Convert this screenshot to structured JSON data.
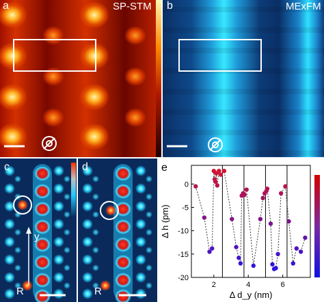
{
  "panels": {
    "a": {
      "label": "a",
      "title": "SP-STM"
    },
    "b": {
      "label": "b",
      "title": "MExFM"
    },
    "c": {
      "label": "c",
      "axis_label": "y",
      "origin_label": "R"
    },
    "d": {
      "label": "d",
      "origin_label": "R"
    },
    "e": {
      "label": "e"
    }
  },
  "colors": {
    "stm_dark": "#3a0000",
    "stm_mid": "#c42a00",
    "stm_bright": "#fff2a0",
    "mexfm_bg": "#0b3d7a",
    "mexfm_stripe": "#2ee6ff",
    "sim_bg": "#0a2a5c",
    "sim_spot": "#29d6ff",
    "sim_red": "#e02020",
    "line_series": "#333333",
    "colorbar_top": "#d40000",
    "colorbar_bottom": "#1010e0"
  },
  "chart_data": {
    "type": "scatter",
    "xlabel": "Δ d_y (nm)",
    "ylabel": "Δ h (pm)",
    "xlim": [
      0.7,
      7.6
    ],
    "ylim": [
      -20,
      4
    ],
    "xticks": [
      2,
      4,
      6
    ],
    "yticks": [
      0,
      -5,
      -10,
      -15,
      -20
    ],
    "vertical_lines_x": [
      2.5,
      3.75,
      5.0,
      6.25
    ],
    "grid": false,
    "points_x": [
      0.95,
      1.45,
      1.75,
      1.9,
      2.0,
      2.05,
      2.1,
      2.15,
      2.2,
      2.3,
      2.4,
      2.6,
      3.05,
      3.3,
      3.45,
      3.55,
      3.62,
      3.7,
      3.78,
      3.9,
      4.3,
      4.7,
      4.85,
      4.95,
      5.05,
      5.1,
      5.3,
      5.4,
      5.5,
      5.6,
      5.72,
      5.9,
      6.15,
      6.35,
      6.6,
      6.8,
      7.05,
      7.3
    ],
    "points_y": [
      -0.5,
      -7.2,
      -14.5,
      -13.8,
      2.8,
      1.0,
      0.5,
      2.3,
      -0.3,
      2.8,
      2.0,
      2.8,
      -7.5,
      -13.5,
      -15.8,
      -17.0,
      -2.5,
      -2.0,
      -2.3,
      -1.2,
      -17.5,
      -7.5,
      -3.0,
      -2.0,
      -1.5,
      -1.0,
      -8.5,
      -17.2,
      -18.2,
      -18.0,
      -15.0,
      -2.0,
      -0.5,
      -8.0,
      -17.0,
      -13.8,
      -14.5,
      -11.5
    ]
  }
}
